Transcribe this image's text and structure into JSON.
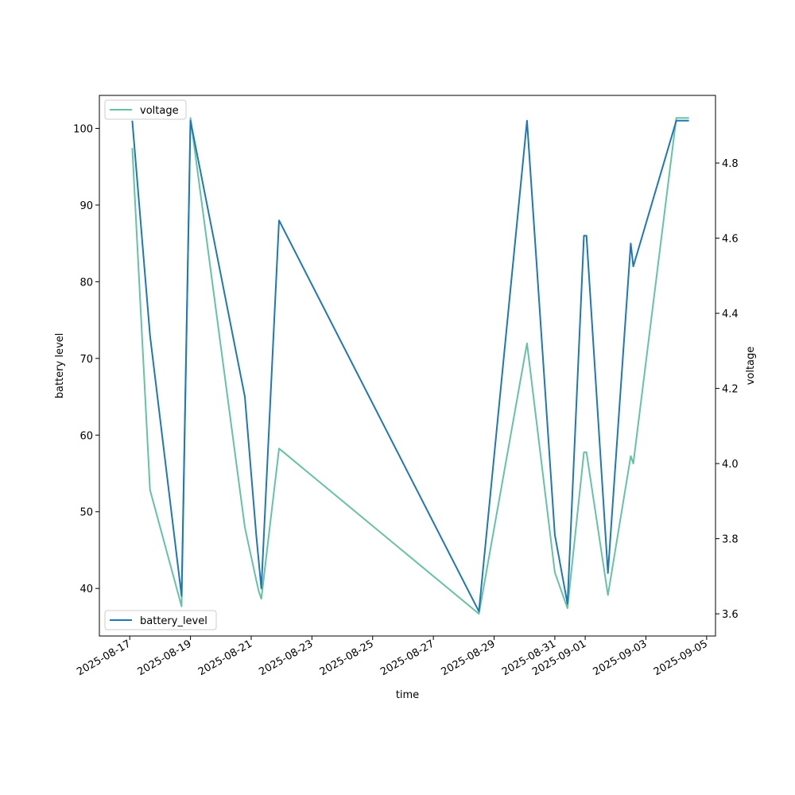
{
  "chart_data": {
    "type": "line",
    "xlabel": "time",
    "ylabel_left": "battery level",
    "ylabel_right": "voltage",
    "xlim": [
      "2025-08-16T00:00:00",
      "2025-09-05T07:00:00"
    ],
    "ylim_left": [
      33.8,
      104.3
    ],
    "ylim_right": [
      3.541,
      4.98
    ],
    "x_ticks": [
      "2025-08-17",
      "2025-08-19",
      "2025-08-21",
      "2025-08-23",
      "2025-08-25",
      "2025-08-27",
      "2025-08-29",
      "2025-08-31",
      "2025-09-01",
      "2025-09-03",
      "2025-09-05"
    ],
    "y_ticks_left": [
      40,
      50,
      60,
      70,
      80,
      90,
      100
    ],
    "y_ticks_right": [
      "3.6",
      "3.8",
      "4.0",
      "4.2",
      "4.4",
      "4.6",
      "4.8"
    ],
    "legend_left": {
      "placement": "lower left",
      "label": "battery_level"
    },
    "legend_right": {
      "placement": "upper left",
      "label": "voltage"
    },
    "series": [
      {
        "name": "battery_level",
        "axis": "left",
        "color": "#1f77b4",
        "points": [
          [
            "2025-08-17T02:00:00",
            101
          ],
          [
            "2025-08-17T16:00:00",
            73
          ],
          [
            "2025-08-18T17:00:00",
            39
          ],
          [
            "2025-08-19T00:00:00",
            101
          ],
          [
            "2025-08-20T19:00:00",
            65
          ],
          [
            "2025-08-21T04:00:00",
            47
          ],
          [
            "2025-08-21T08:00:00",
            40
          ],
          [
            "2025-08-21T22:00:00",
            88
          ],
          [
            "2025-08-28T12:00:00",
            37
          ],
          [
            "2025-08-30T02:00:00",
            101
          ],
          [
            "2025-08-31T00:00:00",
            47
          ],
          [
            "2025-08-31T10:00:00",
            38
          ],
          [
            "2025-08-31T23:00:00",
            86
          ],
          [
            "2025-09-01T01:00:00",
            86
          ],
          [
            "2025-09-01T18:00:00",
            42
          ],
          [
            "2025-09-02T12:00:00",
            85
          ],
          [
            "2025-09-02T14:00:00",
            82
          ],
          [
            "2025-09-04T00:00:00",
            101
          ],
          [
            "2025-09-04T10:00:00",
            101
          ]
        ]
      },
      {
        "name": "voltage",
        "axis": "right",
        "color": "#66c2a5",
        "points": [
          [
            "2025-08-17T02:00:00",
            4.84
          ],
          [
            "2025-08-17T16:00:00",
            3.93
          ],
          [
            "2025-08-18T17:00:00",
            3.62
          ],
          [
            "2025-08-19T00:00:00",
            4.92
          ],
          [
            "2025-08-20T19:00:00",
            3.83
          ],
          [
            "2025-08-21T04:00:00",
            3.69
          ],
          [
            "2025-08-21T06:00:00",
            3.66
          ],
          [
            "2025-08-21T08:00:00",
            3.64
          ],
          [
            "2025-08-21T22:00:00",
            4.04
          ],
          [
            "2025-08-28T12:00:00",
            3.6
          ],
          [
            "2025-08-30T02:00:00",
            4.32
          ],
          [
            "2025-08-31T00:00:00",
            3.71
          ],
          [
            "2025-08-31T10:00:00",
            3.615
          ],
          [
            "2025-08-31T23:00:00",
            4.03
          ],
          [
            "2025-09-01T01:00:00",
            4.03
          ],
          [
            "2025-09-01T18:00:00",
            3.65
          ],
          [
            "2025-09-02T12:00:00",
            4.02
          ],
          [
            "2025-09-02T14:00:00",
            4.0
          ],
          [
            "2025-09-04T00:00:00",
            4.92
          ],
          [
            "2025-09-04T10:00:00",
            4.92
          ]
        ]
      }
    ]
  }
}
